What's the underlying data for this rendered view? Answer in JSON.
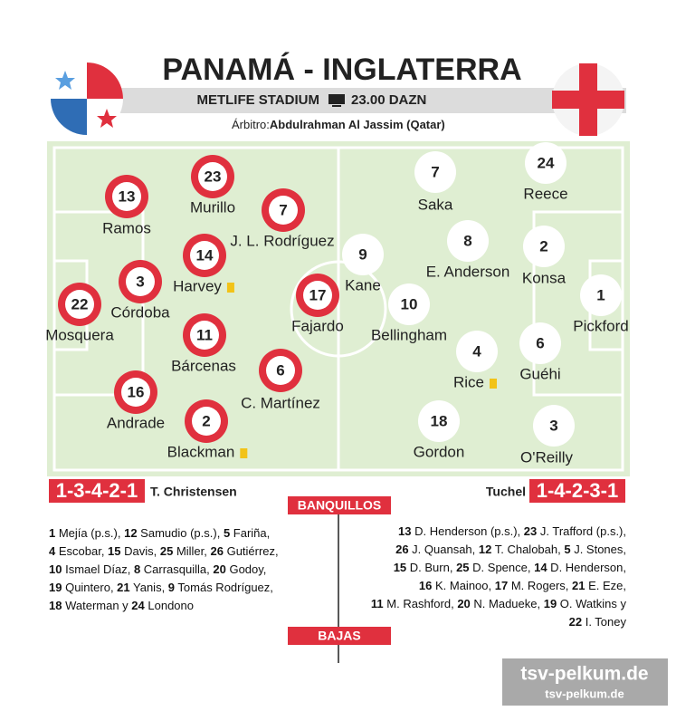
{
  "header": {
    "title": "PANAMÁ - INGLATERRA",
    "venue": "METLIFE STADIUM",
    "broadcast": "23.00 DAZN",
    "referee_label": "Árbitro:",
    "referee": "Abdulrahman Al Jassim (Qatar)"
  },
  "home": {
    "formation": "1-3-4-2-1",
    "coach": "T. Christensen",
    "players": [
      {
        "number": "13",
        "name": "Ramos"
      },
      {
        "number": "23",
        "name": "Murillo"
      },
      {
        "number": "7",
        "name": "J. L. Rodríguez"
      },
      {
        "number": "14",
        "name": "Harvey"
      },
      {
        "number": "3",
        "name": "Córdoba"
      },
      {
        "number": "22",
        "name": "Mosquera"
      },
      {
        "number": "17",
        "name": "Fajardo"
      },
      {
        "number": "11",
        "name": "Bárcenas"
      },
      {
        "number": "6",
        "name": "C. Martínez"
      },
      {
        "number": "16",
        "name": "Andrade"
      },
      {
        "number": "2",
        "name": "Blackman"
      }
    ]
  },
  "away": {
    "formation": "1-4-2-3-1",
    "coach": "Tuchel",
    "players": [
      {
        "number": "7",
        "name": "Saka"
      },
      {
        "number": "24",
        "name": "Reece"
      },
      {
        "number": "8",
        "name": "E. Anderson"
      },
      {
        "number": "2",
        "name": "Konsa"
      },
      {
        "number": "9",
        "name": "Kane"
      },
      {
        "number": "10",
        "name": "Bellingham"
      },
      {
        "number": "1",
        "name": "Pickford"
      },
      {
        "number": "4",
        "name": "Rice"
      },
      {
        "number": "6",
        "name": "Guéhi"
      },
      {
        "number": "18",
        "name": "Gordon"
      },
      {
        "number": "3",
        "name": "O'Reilly"
      }
    ]
  },
  "bench_title": "BANQUILLOS",
  "absences_title": "BAJAS",
  "home_bench": [
    [
      "1",
      " Mejía (p.s.), ",
      "12",
      " Samudio (p.s.), ",
      "5",
      " Fariña,"
    ],
    [
      "4",
      " Escobar, ",
      "15",
      " Davis, ",
      "25",
      " Miller, ",
      "26",
      " Gutiérrez,"
    ],
    [
      "10",
      " Ismael Díaz, ",
      "8",
      " Carrasquilla, ",
      "20",
      " Godoy,"
    ],
    [
      "19",
      " Quintero, ",
      "21",
      " Yanis, ",
      "9",
      " Tomás Rodríguez,"
    ],
    [
      "18",
      " Waterman y ",
      "24",
      " Londono"
    ]
  ],
  "away_bench": [
    [
      "13",
      " D. Henderson (p.s.), ",
      "23",
      " J. Trafford (p.s.),"
    ],
    [
      "26",
      " J. Quansah, ",
      "12",
      " T. Chalobah, ",
      "5",
      " J. Stones,"
    ],
    [
      "15",
      " D. Burn, ",
      "25",
      " D. Spence, ",
      "14",
      " D. Henderson,"
    ],
    [
      "16",
      " K. Mainoo, ",
      "17",
      " M. Rogers, ",
      "21",
      " E. Eze,"
    ],
    [
      "11",
      " M. Rashford, ",
      "20",
      " N. Madueke, ",
      "19",
      " O. Watkins y"
    ],
    [
      "22",
      " I. Toney"
    ]
  ],
  "watermark": {
    "large": "tsv-pelkum.de",
    "small": "tsv-pelkum.de"
  }
}
